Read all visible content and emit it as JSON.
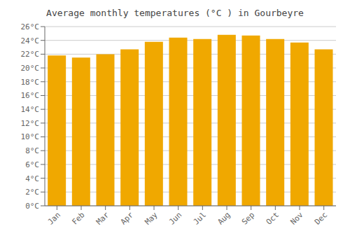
{
  "chart_data": {
    "type": "bar",
    "title": "Average monthly temperatures (°C ) in Gourbeyre",
    "categories": [
      "Jan",
      "Feb",
      "Mar",
      "Apr",
      "May",
      "Jun",
      "Jul",
      "Aug",
      "Sep",
      "Oct",
      "Nov",
      "Dec"
    ],
    "values": [
      21.8,
      21.5,
      22.0,
      22.7,
      23.8,
      24.4,
      24.2,
      24.8,
      24.7,
      24.2,
      23.7,
      22.7
    ],
    "color": "#F0A800",
    "ylim": [
      0,
      26
    ],
    "yticks": [
      {
        "value": 0,
        "label": "0°C"
      },
      {
        "value": 2,
        "label": "2°C"
      },
      {
        "value": 4,
        "label": "4°C"
      },
      {
        "value": 6,
        "label": "6°C"
      },
      {
        "value": 8,
        "label": "8°C"
      },
      {
        "value": 10,
        "label": "10°C"
      },
      {
        "value": 12,
        "label": "12°C"
      },
      {
        "value": 14,
        "label": "14°C"
      },
      {
        "value": 16,
        "label": "16°C"
      },
      {
        "value": 18,
        "label": "18°C"
      },
      {
        "value": 20,
        "label": "20°C"
      },
      {
        "value": 22,
        "label": "22°C"
      },
      {
        "value": 24,
        "label": "24°C"
      },
      {
        "value": 26,
        "label": "26°C"
      }
    ],
    "grid": true
  }
}
